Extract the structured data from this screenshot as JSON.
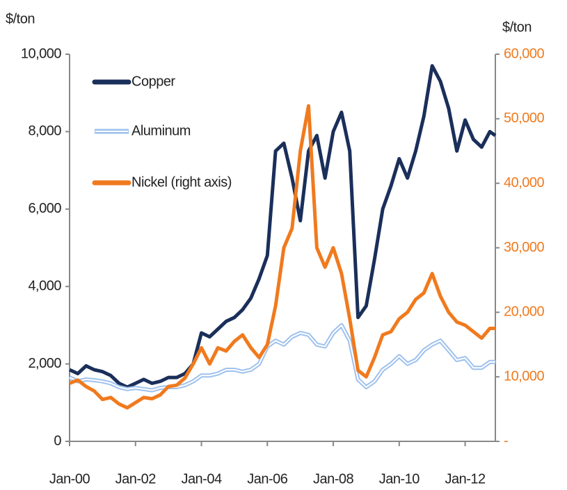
{
  "chart_data": {
    "type": "line",
    "y_label": "$/ton",
    "y2_label": "$/ton",
    "x": [
      "2000-01",
      "2000-04",
      "2000-07",
      "2000-10",
      "2001-01",
      "2001-04",
      "2001-07",
      "2001-10",
      "2002-01",
      "2002-04",
      "2002-07",
      "2002-10",
      "2003-01",
      "2003-04",
      "2003-07",
      "2003-10",
      "2004-01",
      "2004-04",
      "2004-07",
      "2004-10",
      "2005-01",
      "2005-04",
      "2005-07",
      "2005-10",
      "2006-01",
      "2006-04",
      "2006-07",
      "2006-10",
      "2007-01",
      "2007-04",
      "2007-07",
      "2007-10",
      "2008-01",
      "2008-04",
      "2008-07",
      "2008-10",
      "2009-01",
      "2009-04",
      "2009-07",
      "2009-10",
      "2010-01",
      "2010-04",
      "2010-07",
      "2010-10",
      "2011-01",
      "2011-04",
      "2011-07",
      "2011-10",
      "2012-01",
      "2012-04",
      "2012-07",
      "2012-10",
      "2012-12"
    ],
    "series": [
      {
        "name": "Copper",
        "color": "#1a2f5a",
        "values": [
          1850,
          1750,
          1950,
          1850,
          1800,
          1700,
          1500,
          1400,
          1500,
          1600,
          1500,
          1550,
          1650,
          1650,
          1750,
          2000,
          2800,
          2700,
          2900,
          3100,
          3200,
          3400,
          3700,
          4200,
          4800,
          7500,
          7700,
          6800,
          5700,
          7500,
          7900,
          6800,
          8000,
          8500,
          7500,
          3200,
          3500,
          4700,
          6000,
          6600,
          7300,
          6800,
          7500,
          8400,
          9700,
          9300,
          8600,
          7500,
          8300,
          7800,
          7600,
          8000,
          7900
        ]
      },
      {
        "name": "Aluminum",
        "color": "#9ec1ee",
        "values": [
          1650,
          1550,
          1600,
          1580,
          1550,
          1500,
          1400,
          1350,
          1380,
          1350,
          1320,
          1380,
          1400,
          1400,
          1450,
          1550,
          1700,
          1700,
          1750,
          1850,
          1850,
          1800,
          1850,
          2000,
          2450,
          2600,
          2500,
          2700,
          2800,
          2750,
          2500,
          2450,
          2800,
          3000,
          2600,
          1600,
          1400,
          1550,
          1850,
          2000,
          2200,
          2000,
          2100,
          2350,
          2500,
          2600,
          2350,
          2100,
          2150,
          1900,
          1900,
          2050,
          2050
        ]
      },
      {
        "name": "Nickel (right axis)",
        "color": "#f07a1e",
        "axis": "y2",
        "values": [
          9000,
          9500,
          8500,
          7800,
          6500,
          6800,
          5800,
          5200,
          6000,
          6800,
          6600,
          7200,
          8500,
          8700,
          9800,
          12000,
          14500,
          12000,
          14500,
          14000,
          15500,
          16500,
          14500,
          13000,
          15000,
          21000,
          30000,
          33000,
          45000,
          52000,
          30000,
          27000,
          30000,
          26000,
          19000,
          11000,
          10000,
          13000,
          16500,
          17000,
          19000,
          20000,
          22000,
          23000,
          26000,
          22500,
          20000,
          18500,
          18000,
          17000,
          16000,
          17500,
          17500
        ]
      }
    ],
    "xlim": [
      "2000-01",
      "2012-12"
    ],
    "xticks": [
      {
        "value": "2000-01",
        "label": "Jan-00"
      },
      {
        "value": "2002-01",
        "label": "Jan-02"
      },
      {
        "value": "2004-01",
        "label": "Jan-04"
      },
      {
        "value": "2006-01",
        "label": "Jan-06"
      },
      {
        "value": "2008-01",
        "label": "Jan-08"
      },
      {
        "value": "2010-01",
        "label": "Jan-10"
      },
      {
        "value": "2012-01",
        "label": "Jan-12"
      }
    ],
    "ylim": [
      0,
      10000
    ],
    "yticks": [
      0,
      {
        "value": 2000,
        "label": "2,000"
      },
      {
        "value": 4000,
        "label": "4,000"
      },
      {
        "value": 6000,
        "label": "6,000"
      },
      {
        "value": 8000,
        "label": "8,000"
      },
      {
        "value": 10000,
        "label": "10,000"
      }
    ],
    "y2lim": [
      0,
      60000
    ],
    "y2ticks": [
      {
        "value": 0,
        "label": "-"
      },
      {
        "value": 10000,
        "label": "10,000"
      },
      {
        "value": 20000,
        "label": "20,000"
      },
      {
        "value": 30000,
        "label": "30,000"
      },
      {
        "value": 40000,
        "label": "40,000"
      },
      {
        "value": 50000,
        "label": "50,000"
      },
      {
        "value": 60000,
        "label": "60,000"
      }
    ],
    "legend": "upper left",
    "grid": false
  }
}
